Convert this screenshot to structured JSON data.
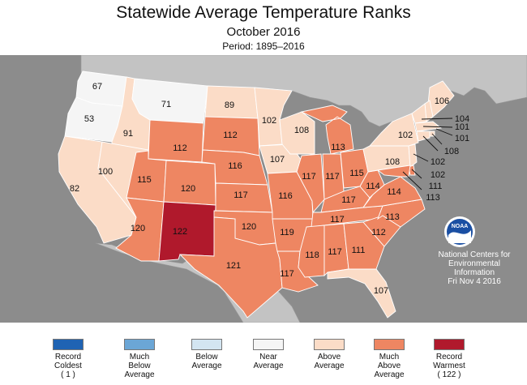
{
  "header": {
    "title": "Statewide Average Temperature Ranks",
    "subtitle": "October 2016",
    "period": "Period: 1895–2016"
  },
  "colors": {
    "ocean": "#8c8c8c",
    "outer_land": "#c3c3c3",
    "record_coldest": "#1f63b3",
    "much_below": "#6ba6d6",
    "below": "#d3e5f1",
    "near": "#f5f5f5",
    "above": "#fbdcc7",
    "much_above": "#ee8662",
    "record_warmest": "#b0192c"
  },
  "states": [
    {
      "state": "WA",
      "rank": "67",
      "category": "near"
    },
    {
      "state": "OR",
      "rank": "53",
      "category": "near"
    },
    {
      "state": "CA",
      "rank": "82",
      "category": "above"
    },
    {
      "state": "ID",
      "rank": "91",
      "category": "above"
    },
    {
      "state": "NV",
      "rank": "100",
      "category": "above"
    },
    {
      "state": "MT",
      "rank": "71",
      "category": "near"
    },
    {
      "state": "WY",
      "rank": "112",
      "category": "much_above"
    },
    {
      "state": "UT",
      "rank": "115",
      "category": "much_above"
    },
    {
      "state": "AZ",
      "rank": "120",
      "category": "much_above"
    },
    {
      "state": "CO",
      "rank": "120",
      "category": "much_above"
    },
    {
      "state": "NM",
      "rank": "122",
      "category": "record_warmest"
    },
    {
      "state": "ND",
      "rank": "89",
      "category": "above"
    },
    {
      "state": "SD",
      "rank": "112",
      "category": "much_above"
    },
    {
      "state": "NE",
      "rank": "116",
      "category": "much_above"
    },
    {
      "state": "KS",
      "rank": "117",
      "category": "much_above"
    },
    {
      "state": "OK",
      "rank": "120",
      "category": "much_above"
    },
    {
      "state": "TX",
      "rank": "121",
      "category": "much_above"
    },
    {
      "state": "MN",
      "rank": "102",
      "category": "above"
    },
    {
      "state": "IA",
      "rank": "107",
      "category": "above"
    },
    {
      "state": "MO",
      "rank": "116",
      "category": "much_above"
    },
    {
      "state": "AR",
      "rank": "119",
      "category": "much_above"
    },
    {
      "state": "LA",
      "rank": "117",
      "category": "much_above"
    },
    {
      "state": "WI",
      "rank": "108",
      "category": "above"
    },
    {
      "state": "IL",
      "rank": "117",
      "category": "much_above"
    },
    {
      "state": "MI",
      "rank": "113",
      "category": "much_above"
    },
    {
      "state": "IN",
      "rank": "117",
      "category": "much_above"
    },
    {
      "state": "OH",
      "rank": "115",
      "category": "much_above"
    },
    {
      "state": "KY",
      "rank": "117",
      "category": "much_above"
    },
    {
      "state": "TN",
      "rank": "117",
      "category": "much_above"
    },
    {
      "state": "MS",
      "rank": "118",
      "category": "much_above"
    },
    {
      "state": "AL",
      "rank": "117",
      "category": "much_above"
    },
    {
      "state": "GA",
      "rank": "111",
      "category": "much_above"
    },
    {
      "state": "FL",
      "rank": "107",
      "category": "above"
    },
    {
      "state": "SC",
      "rank": "112",
      "category": "much_above"
    },
    {
      "state": "NC",
      "rank": "113",
      "category": "much_above"
    },
    {
      "state": "VA",
      "rank": "114",
      "category": "much_above"
    },
    {
      "state": "WV",
      "rank": "114",
      "category": "much_above"
    },
    {
      "state": "PA",
      "rank": "108",
      "category": "above"
    },
    {
      "state": "NY",
      "rank": "102",
      "category": "above"
    },
    {
      "state": "ME",
      "rank": "106",
      "category": "above"
    },
    {
      "state": "NH",
      "rank": "104",
      "category": "above"
    },
    {
      "state": "VT",
      "rank": "101",
      "category": "above"
    },
    {
      "state": "MA",
      "rank": "101",
      "category": "above"
    },
    {
      "state": "RI",
      "rank": "108",
      "category": "above"
    },
    {
      "state": "CT",
      "rank": "102",
      "category": "above"
    },
    {
      "state": "NJ",
      "rank": "102",
      "category": "above"
    },
    {
      "state": "DE",
      "rank": "111",
      "category": "much_above"
    },
    {
      "state": "MD",
      "rank": "113",
      "category": "much_above"
    }
  ],
  "legend": [
    {
      "label": "Record Coldest (1)",
      "lines": [
        "Record",
        "Coldest",
        "( 1 )"
      ],
      "color": "#1f63b3"
    },
    {
      "label": "Much Below Average",
      "lines": [
        "Much",
        "Below",
        "Average"
      ],
      "color": "#6ba6d6"
    },
    {
      "label": "Below Average",
      "lines": [
        "Below",
        "Average"
      ],
      "color": "#d3e5f1"
    },
    {
      "label": "Near Average",
      "lines": [
        "Near",
        "Average"
      ],
      "color": "#f5f5f5"
    },
    {
      "label": "Above Average",
      "lines": [
        "Above",
        "Average"
      ],
      "color": "#fbdcc7"
    },
    {
      "label": "Much Above Average",
      "lines": [
        "Much",
        "Above",
        "Average"
      ],
      "color": "#ee8662"
    },
    {
      "label": "Record Warmest (122)",
      "lines": [
        "Record",
        "Warmest",
        "( 122 )"
      ],
      "color": "#b0192c"
    }
  ],
  "logo": {
    "text": "NOAA",
    "credit": [
      "National Centers for",
      "Environmental",
      "Information",
      "Fri Nov  4 2016"
    ]
  }
}
